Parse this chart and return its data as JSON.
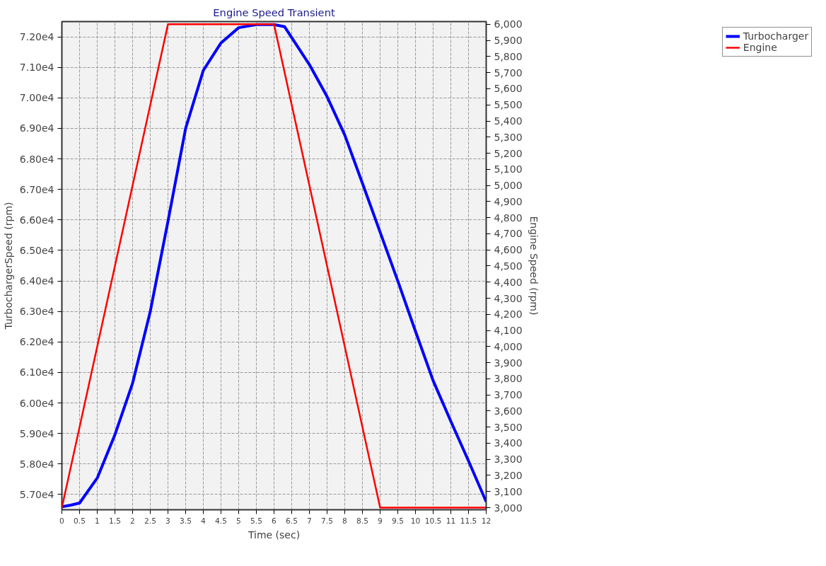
{
  "chart_data": {
    "type": "line",
    "title": "Engine Speed Transient",
    "xlabel": "Time (sec)",
    "ylabel": "TurbochargerSpeed (rpm)",
    "y2label": "Engine Speed (rpm)",
    "xlim": [
      0,
      12
    ],
    "xticks": [
      0,
      0.5,
      1,
      1.5,
      2,
      2.5,
      3,
      3.5,
      4,
      4.5,
      5,
      5.5,
      6,
      6.5,
      7,
      7.5,
      8,
      8.5,
      9,
      9.5,
      10,
      10.5,
      11,
      11.5,
      12
    ],
    "ylim": [
      56500,
      72500
    ],
    "yticks": [
      {
        "value": 57000,
        "label": "5.70e4"
      },
      {
        "value": 58000,
        "label": "5.80e4"
      },
      {
        "value": 59000,
        "label": "5.90e4"
      },
      {
        "value": 60000,
        "label": "6.00e4"
      },
      {
        "value": 61000,
        "label": "6.10e4"
      },
      {
        "value": 62000,
        "label": "6.20e4"
      },
      {
        "value": 63000,
        "label": "6.30e4"
      },
      {
        "value": 64000,
        "label": "6.40e4"
      },
      {
        "value": 65000,
        "label": "6.50e4"
      },
      {
        "value": 66000,
        "label": "6.60e4"
      },
      {
        "value": 67000,
        "label": "6.70e4"
      },
      {
        "value": 68000,
        "label": "6.80e4"
      },
      {
        "value": 69000,
        "label": "6.90e4"
      },
      {
        "value": 70000,
        "label": "7.00e4"
      },
      {
        "value": 71000,
        "label": "7.10e4"
      },
      {
        "value": 72000,
        "label": "7.20e4"
      }
    ],
    "y2lim": [
      2987,
      6017
    ],
    "y2ticks": [
      {
        "value": 3000,
        "label": "3,000"
      },
      {
        "value": 3100,
        "label": "3,100"
      },
      {
        "value": 3200,
        "label": "3,200"
      },
      {
        "value": 3300,
        "label": "3,300"
      },
      {
        "value": 3400,
        "label": "3,400"
      },
      {
        "value": 3500,
        "label": "3,500"
      },
      {
        "value": 3600,
        "label": "3,600"
      },
      {
        "value": 3700,
        "label": "3,700"
      },
      {
        "value": 3800,
        "label": "3,800"
      },
      {
        "value": 3900,
        "label": "3,900"
      },
      {
        "value": 4000,
        "label": "4,000"
      },
      {
        "value": 4100,
        "label": "4,100"
      },
      {
        "value": 4200,
        "label": "4,200"
      },
      {
        "value": 4300,
        "label": "4,300"
      },
      {
        "value": 4400,
        "label": "4,400"
      },
      {
        "value": 4500,
        "label": "4,500"
      },
      {
        "value": 4600,
        "label": "4,600"
      },
      {
        "value": 4700,
        "label": "4,700"
      },
      {
        "value": 4800,
        "label": "4,800"
      },
      {
        "value": 4900,
        "label": "4,900"
      },
      {
        "value": 5000,
        "label": "5,000"
      },
      {
        "value": 5100,
        "label": "5,100"
      },
      {
        "value": 5200,
        "label": "5,200"
      },
      {
        "value": 5300,
        "label": "5,300"
      },
      {
        "value": 5400,
        "label": "5,400"
      },
      {
        "value": 5500,
        "label": "5,500"
      },
      {
        "value": 5600,
        "label": "5,600"
      },
      {
        "value": 5700,
        "label": "5,700"
      },
      {
        "value": 5800,
        "label": "5,800"
      },
      {
        "value": 5900,
        "label": "5,900"
      },
      {
        "value": 6000,
        "label": "6,000"
      }
    ],
    "grid": true,
    "legend": "top right",
    "line_style": "solid",
    "marker": "none",
    "series": [
      {
        "name": "Turbocharger",
        "color": "#0000ff",
        "x": [
          0,
          0.25,
          0.5,
          1,
          1.5,
          2,
          2.5,
          3,
          3.5,
          4,
          4.5,
          5,
          5.5,
          6,
          6.3,
          7,
          7.5,
          8,
          8.5,
          9,
          9.5,
          10,
          10.5,
          11,
          11.5,
          12
        ],
        "values": [
          56600,
          56650,
          56720,
          57540,
          58960,
          60650,
          63000,
          65950,
          69000,
          70900,
          71800,
          72300,
          72400,
          72400,
          72330,
          71090,
          70040,
          68780,
          67200,
          65600,
          64000,
          62350,
          60730,
          59400,
          58100,
          56760
        ]
      },
      {
        "name": "Engine",
        "color": "#ff0000",
        "axis": "y2",
        "x": [
          0,
          0.5,
          1,
          1.5,
          2,
          2.5,
          3,
          6,
          6.5,
          7,
          7.5,
          8,
          8.5,
          9,
          12
        ],
        "values": [
          3000,
          3500,
          4000,
          4500,
          5000,
          5500,
          6000,
          6000,
          5500,
          5000,
          4500,
          4000,
          3500,
          3000,
          3000
        ]
      }
    ]
  }
}
